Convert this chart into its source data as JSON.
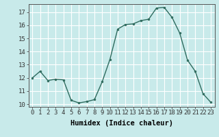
{
  "x": [
    0,
    1,
    2,
    3,
    4,
    5,
    6,
    7,
    8,
    9,
    10,
    11,
    12,
    13,
    14,
    15,
    16,
    17,
    18,
    19,
    20,
    21,
    22,
    23
  ],
  "y": [
    12.0,
    12.5,
    11.8,
    11.9,
    11.85,
    10.3,
    10.1,
    10.2,
    10.35,
    11.7,
    13.4,
    15.7,
    16.05,
    16.1,
    16.35,
    16.45,
    17.3,
    17.35,
    16.6,
    15.4,
    13.35,
    12.5,
    10.8,
    10.15
  ],
  "line_color": "#2e6b5e",
  "marker": "o",
  "marker_size": 2.0,
  "bg_color": "#c8eaea",
  "grid_color": "#ffffff",
  "xlabel": "Humidex (Indice chaleur)",
  "ylim": [
    9.8,
    17.6
  ],
  "xlim": [
    -0.5,
    23.5
  ],
  "yticks": [
    10,
    11,
    12,
    13,
    14,
    15,
    16,
    17
  ],
  "xticks": [
    0,
    1,
    2,
    3,
    4,
    5,
    6,
    7,
    8,
    9,
    10,
    11,
    12,
    13,
    14,
    15,
    16,
    17,
    18,
    19,
    20,
    21,
    22,
    23
  ],
  "label_fontsize": 7.5,
  "tick_fontsize": 6.5
}
